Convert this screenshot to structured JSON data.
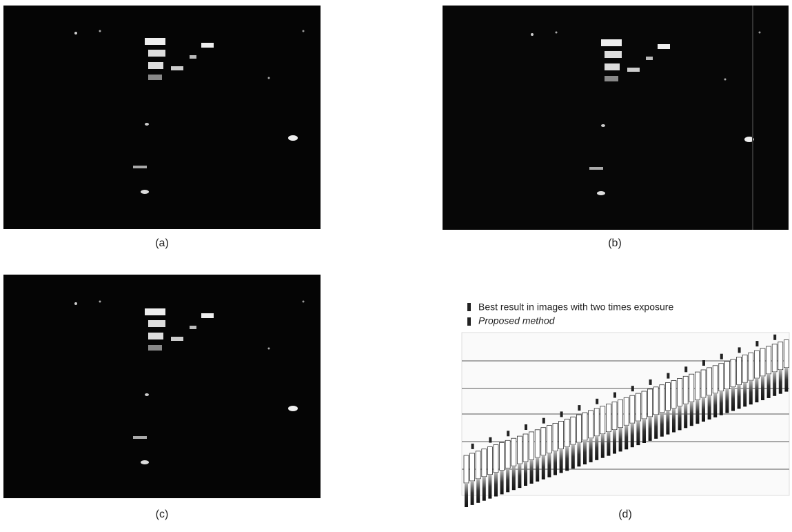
{
  "panels": [
    {
      "label": "(a)"
    },
    {
      "label": "(b)"
    },
    {
      "label": "(c)"
    },
    {
      "label": "(d)"
    }
  ],
  "legend": {
    "items": [
      "Best result in images with two times exposure",
      "Proposed method"
    ]
  }
}
